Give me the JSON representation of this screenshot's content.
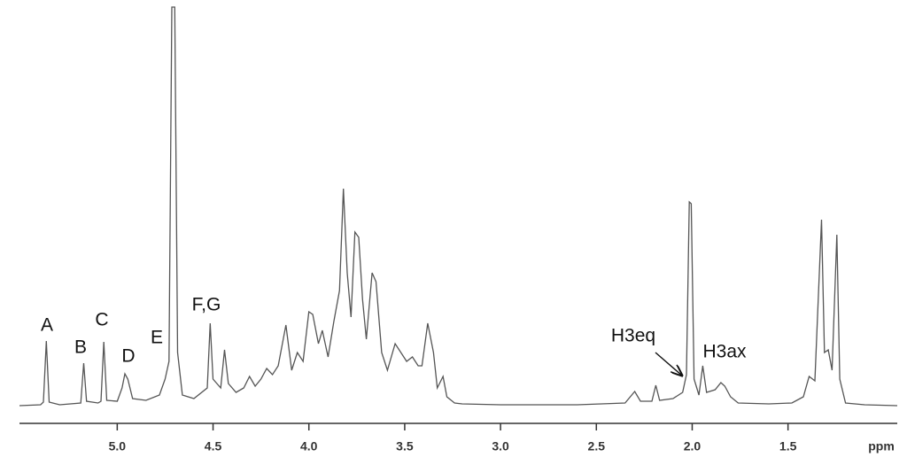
{
  "chart_data": {
    "type": "line",
    "color": "#555555",
    "x": [
      5.51,
      5.4,
      5.385,
      5.37,
      5.355,
      5.3,
      5.19,
      5.175,
      5.16,
      5.1,
      5.085,
      5.07,
      5.055,
      5.0,
      4.975,
      4.96,
      4.945,
      4.92,
      4.85,
      4.78,
      4.75,
      4.73,
      4.715,
      4.7,
      4.685,
      4.66,
      4.6,
      4.53,
      4.515,
      4.5,
      4.46,
      4.44,
      4.42,
      4.38,
      4.34,
      4.31,
      4.28,
      4.25,
      4.22,
      4.19,
      4.16,
      4.12,
      4.09,
      4.06,
      4.03,
      4.0,
      3.98,
      3.95,
      3.93,
      3.9,
      3.87,
      3.84,
      3.82,
      3.8,
      3.78,
      3.76,
      3.74,
      3.72,
      3.7,
      3.67,
      3.65,
      3.62,
      3.59,
      3.55,
      3.52,
      3.49,
      3.46,
      3.43,
      3.41,
      3.38,
      3.35,
      3.33,
      3.3,
      3.28,
      3.24,
      3.2,
      3.0,
      2.6,
      2.35,
      2.3,
      2.27,
      2.21,
      2.19,
      2.17,
      2.1,
      2.05,
      2.03,
      2.015,
      2.005,
      1.99,
      1.965,
      1.945,
      1.925,
      1.88,
      1.85,
      1.83,
      1.8,
      1.76,
      1.6,
      1.48,
      1.42,
      1.39,
      1.36,
      1.325,
      1.31,
      1.29,
      1.27,
      1.245,
      1.23,
      1.2,
      1.1,
      0.93
    ],
    "values": [
      0,
      1,
      4,
      73,
      4,
      1,
      3,
      48,
      5,
      3,
      5,
      72,
      6,
      5,
      20,
      36,
      30,
      8,
      6,
      12,
      30,
      50,
      450,
      450,
      60,
      12,
      8,
      20,
      93,
      30,
      20,
      63,
      25,
      15,
      20,
      33,
      22,
      30,
      42,
      35,
      45,
      91,
      40,
      60,
      50,
      106,
      103,
      70,
      85,
      55,
      95,
      130,
      245,
      150,
      100,
      196,
      190,
      120,
      75,
      150,
      140,
      60,
      40,
      70,
      60,
      50,
      55,
      45,
      45,
      93,
      60,
      20,
      33,
      10,
      3,
      2,
      1,
      1,
      3,
      16,
      5,
      5,
      23,
      6,
      8,
      15,
      35,
      230,
      228,
      30,
      12,
      45,
      15,
      18,
      26,
      22,
      10,
      3,
      2,
      3,
      10,
      33,
      28,
      210,
      60,
      63,
      40,
      193,
      30,
      3,
      1,
      0
    ],
    "xlim": [
      5.51,
      0.93
    ],
    "ylim": [
      0,
      450
    ],
    "xticks": [
      {
        "value": 5,
        "label": "5.0"
      },
      4.5,
      {
        "value": 4,
        "label": "4.0"
      },
      3.5,
      {
        "value": 3,
        "label": "3.0"
      },
      2.5,
      {
        "value": 2,
        "label": "2.0"
      },
      1.5
    ],
    "x_label": "ppm",
    "annotations": [
      "A",
      "B",
      "C",
      "D",
      "E",
      "F,G",
      "H3eq",
      "H3ax"
    ]
  }
}
